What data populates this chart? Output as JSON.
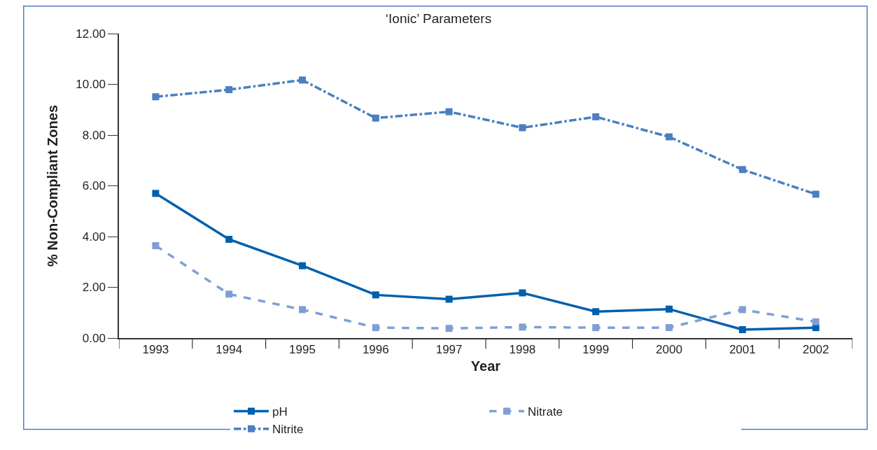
{
  "chart_data": {
    "type": "line",
    "title": "‘Ionic’ Parameters",
    "xlabel": "Year",
    "ylabel": "% Non-Compliant Zones",
    "categories": [
      "1993",
      "1994",
      "1995",
      "1996",
      "1997",
      "1998",
      "1999",
      "2000",
      "2001",
      "2002"
    ],
    "series": [
      {
        "name": "pH",
        "color": "#0060ad",
        "line_style": "solid",
        "values": [
          5.7,
          3.89,
          2.85,
          1.7,
          1.53,
          1.78,
          1.04,
          1.14,
          0.33,
          0.41
        ]
      },
      {
        "name": "Nitrate",
        "color": "#7f9fd4",
        "line_style": "dashed",
        "values": [
          3.64,
          1.73,
          1.12,
          0.41,
          0.38,
          0.43,
          0.41,
          0.41,
          1.12,
          0.64
        ]
      },
      {
        "name": "Nitrite",
        "color": "#4a7fc1",
        "line_style": "dashdot",
        "values": [
          9.51,
          9.79,
          10.17,
          8.67,
          8.92,
          8.29,
          8.72,
          7.93,
          6.64,
          5.67
        ]
      }
    ],
    "ylim": [
      0,
      12
    ],
    "yticks": [
      {
        "value": 0,
        "label": "0.00"
      },
      {
        "value": 2,
        "label": "2.00"
      },
      {
        "value": 4,
        "label": "4.00"
      },
      {
        "value": 6,
        "label": "6.00"
      },
      {
        "value": 8,
        "label": "8.00"
      },
      {
        "value": 10,
        "label": "10.00"
      },
      {
        "value": 12,
        "label": "12.00"
      }
    ],
    "grid": false,
    "legend": "bottom",
    "marker": "square"
  }
}
